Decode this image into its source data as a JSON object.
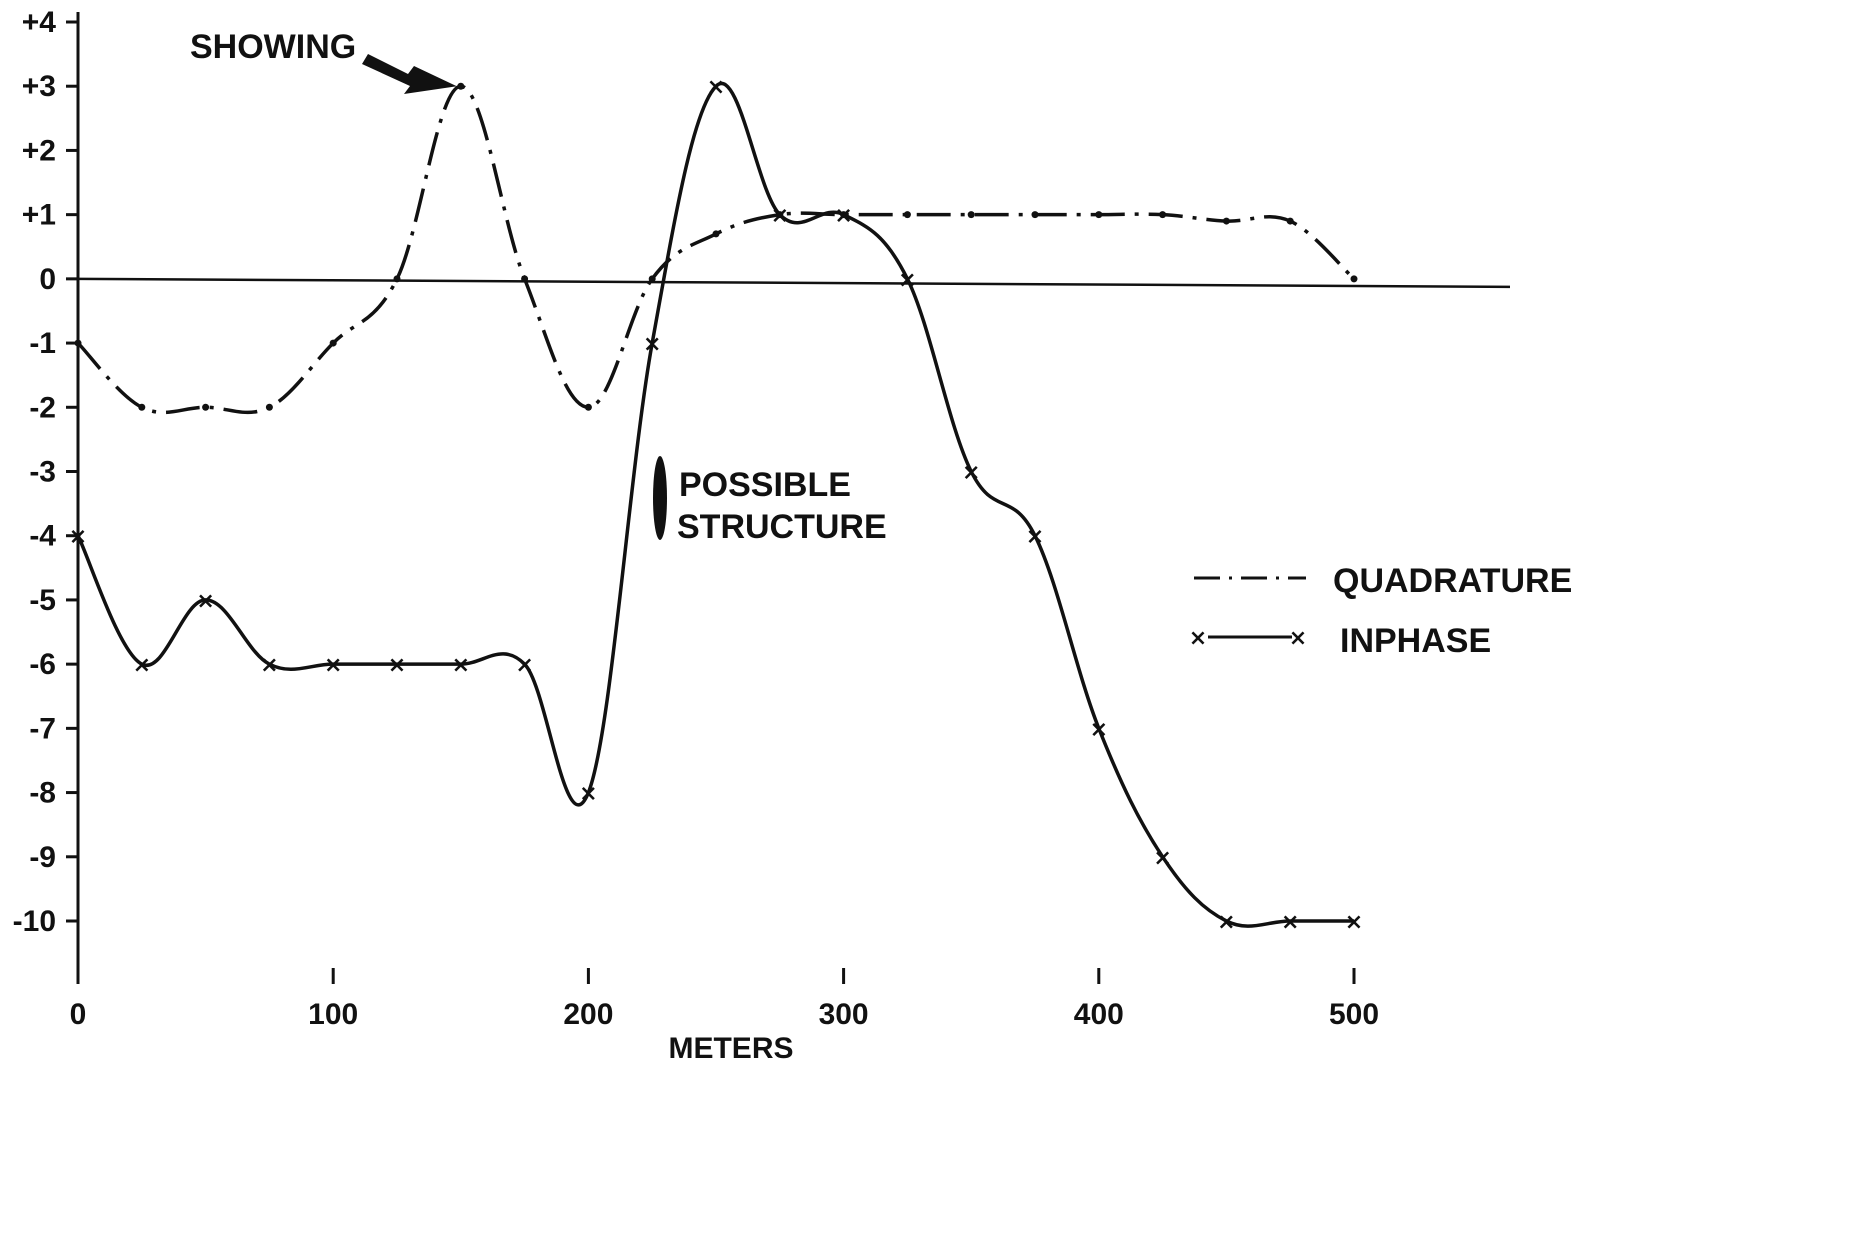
{
  "chart_data": {
    "type": "line",
    "title": "",
    "xlabel": "METERS",
    "ylabel": "",
    "xlim": [
      0,
      500
    ],
    "ylim": [
      -10.5,
      4
    ],
    "x_ticks": [
      0,
      100,
      200,
      300,
      400,
      500
    ],
    "x_tick_labels": [
      "0",
      "100",
      "200",
      "300",
      "400",
      "500"
    ],
    "y_ticks": [
      4,
      3,
      2,
      1,
      0,
      -1,
      -2,
      -3,
      -4,
      -5,
      -6,
      -7,
      -8,
      -9,
      -10
    ],
    "y_tick_labels": [
      "+4",
      "+3",
      "+2",
      "+1",
      "0",
      "-1",
      "-2",
      "-3",
      "-4",
      "-5",
      "-6",
      "-7",
      "-8",
      "-9",
      "-10"
    ],
    "grid": false,
    "legend_position": "right",
    "series": [
      {
        "name": "QUADRATURE",
        "style": "dash-dot",
        "marker": "dot",
        "x": [
          0,
          25,
          50,
          75,
          100,
          125,
          150,
          175,
          200,
          225,
          250,
          275,
          300,
          325,
          350,
          375,
          400,
          425,
          450,
          475,
          500
        ],
        "y": [
          -1,
          -2,
          -2,
          -2,
          -1,
          0,
          3,
          0,
          -2,
          0,
          0.7,
          1,
          1,
          1,
          1,
          1,
          1,
          1,
          0.9,
          0.9,
          0
        ]
      },
      {
        "name": "INPHASE",
        "style": "solid",
        "marker": "x",
        "x": [
          0,
          25,
          50,
          75,
          100,
          125,
          150,
          175,
          200,
          225,
          250,
          275,
          300,
          325,
          350,
          375,
          400,
          425,
          450,
          475,
          500
        ],
        "y": [
          -4,
          -6,
          -5,
          -6,
          -6,
          -6,
          -6,
          -6,
          -8,
          -1,
          3,
          1,
          1,
          0,
          -3,
          -4,
          -7,
          -9,
          -10,
          -10,
          -10
        ]
      }
    ],
    "annotations": [
      {
        "text": "SHOWING",
        "x": 150,
        "y": 3
      },
      {
        "text": "POSSIBLE",
        "x": 232,
        "y": -3
      },
      {
        "text": "STRUCTURE",
        "x": 232,
        "y": -3.6
      }
    ],
    "legend": [
      {
        "label": "QUADRATURE",
        "symbol": "dash-dot"
      },
      {
        "label": "INPHASE",
        "symbol": "x-solid-x"
      }
    ]
  }
}
